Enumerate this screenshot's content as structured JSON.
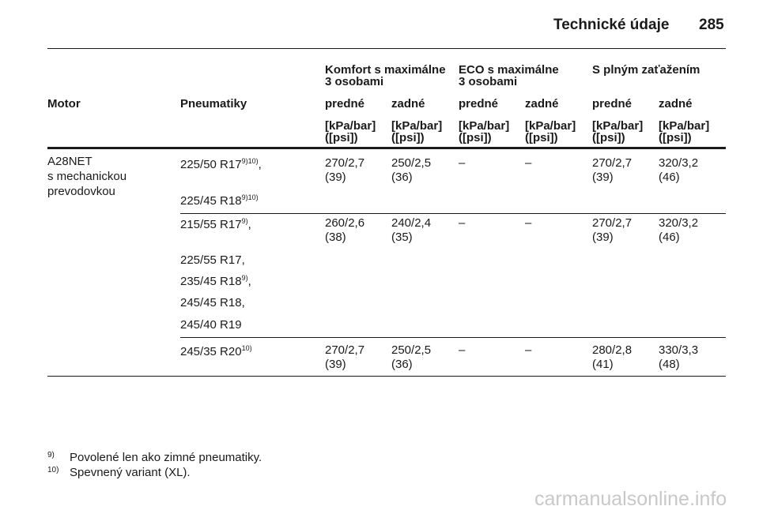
{
  "header": {
    "title": "Technické údaje",
    "page": "285"
  },
  "table": {
    "group_headers": [
      [
        "Komfort s maximálne",
        "3 osobami"
      ],
      [
        "ECO s maximálne",
        "3 osobami"
      ],
      [
        "S plným zaťažením"
      ]
    ],
    "column_headers": [
      "Motor",
      "Pneumatiky",
      "predné",
      "zadné",
      "predné",
      "zadné",
      "predné",
      "zadné"
    ],
    "units": [
      [
        "[kPa/bar]",
        "([psi])"
      ],
      [
        "[kPa/bar]",
        "([psi])"
      ],
      [
        "[kPa/bar]",
        "([psi])"
      ],
      [
        "[kPa/bar]",
        "([psi])"
      ],
      [
        "[kPa/bar]",
        "([psi])"
      ],
      [
        "[kPa/bar]",
        "([psi])"
      ]
    ],
    "motor": [
      "A28NET",
      "s mechanickou",
      "prevodovkou"
    ],
    "rows": [
      {
        "tyres": [
          {
            "size": "225/50 R17",
            "note": "9)10)",
            "tail": ","
          },
          {
            "size": "225/45 R18",
            "note": "9)10)"
          }
        ],
        "pressures": [
          [
            "270/2,7",
            "(39)"
          ],
          [
            "250/2,5",
            "(36)"
          ],
          [
            "–"
          ],
          [
            "–"
          ],
          [
            "270/2,7",
            "(39)"
          ],
          [
            "320/3,2",
            "(46)"
          ]
        ]
      },
      {
        "tyres": [
          {
            "size": "215/55 R17",
            "note": "9)",
            "tail": ","
          },
          {
            "size": "225/55 R17,"
          },
          {
            "size": "235/45 R18",
            "note": "9)",
            "tail": ","
          },
          {
            "size": "245/45 R18,"
          },
          {
            "size": "245/40 R19"
          }
        ],
        "pressures": [
          [
            "260/2,6",
            "(38)"
          ],
          [
            "240/2,4",
            "(35)"
          ],
          [
            "–"
          ],
          [
            "–"
          ],
          [
            "270/2,7",
            "(39)"
          ],
          [
            "320/3,2",
            "(46)"
          ]
        ]
      },
      {
        "tyres": [
          {
            "size": "245/35 R20",
            "note": "10)"
          }
        ],
        "pressures": [
          [
            "270/2,7",
            "(39)"
          ],
          [
            "250/2,5",
            "(36)"
          ],
          [
            "–"
          ],
          [
            "–"
          ],
          [
            "280/2,8",
            "(41)"
          ],
          [
            "330/3,3",
            "(48)"
          ]
        ]
      }
    ]
  },
  "footnotes": [
    {
      "mark": "9)",
      "text": "Povolené len ako zimné pneumatiky."
    },
    {
      "mark": "10)",
      "text": "Spevnený variant (XL)."
    }
  ],
  "watermark": "carmanualsonline.info"
}
